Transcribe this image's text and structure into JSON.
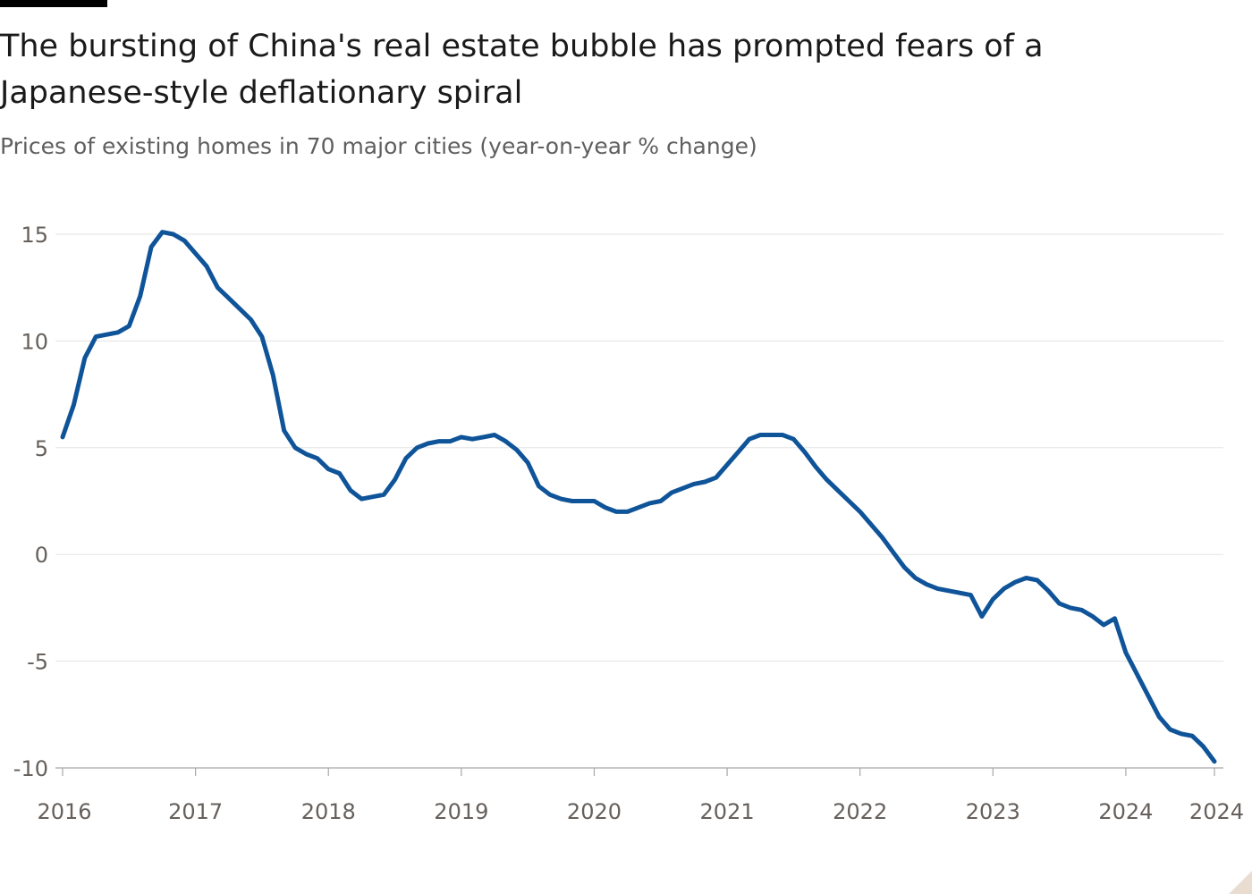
{
  "header": {
    "title": "The bursting of China's real estate bubble has prompted fears of a Japanese-style deflationary spiral",
    "subtitle": "Prices of existing homes in 70 major cities (year-on-year % change)"
  },
  "colors": {
    "series": "#0f5499",
    "grid": "#e3e3e3",
    "axis": "#a8a8a8",
    "tick_text": "#66605c"
  },
  "chart_data": {
    "type": "line",
    "title": "The bursting of China's real estate bubble has prompted fears of a Japanese-style deflationary spiral",
    "subtitle": "Prices of existing homes in 70 major cities (year-on-year % change)",
    "xlabel": "",
    "ylabel": "",
    "xlim": [
      "2016-01",
      "2024-09"
    ],
    "ylim": [
      -10,
      15
    ],
    "y_ticks": [
      15,
      10,
      5,
      0,
      -5,
      -10
    ],
    "y_tick_labels": [
      "15",
      "10",
      "5",
      "0",
      "-5",
      "-10"
    ],
    "x_ticks": [
      "2016-01",
      "2017-01",
      "2018-01",
      "2019-01",
      "2020-01",
      "2021-01",
      "2022-01",
      "2023-01",
      "2024-01",
      "2024-09"
    ],
    "x_tick_labels": [
      "2016",
      "2017",
      "2018",
      "2019",
      "2020",
      "2021",
      "2022",
      "2023",
      "2024",
      "2024"
    ],
    "grid": true,
    "legend": "none",
    "series": [
      {
        "x": [
          "2016-01",
          "2016-02",
          "2016-03",
          "2016-04",
          "2016-05",
          "2016-06",
          "2016-07",
          "2016-08",
          "2016-09",
          "2016-10",
          "2016-11",
          "2016-12",
          "2017-01",
          "2017-02",
          "2017-03",
          "2017-04",
          "2017-05",
          "2017-06",
          "2017-07",
          "2017-08",
          "2017-09",
          "2017-10",
          "2017-11",
          "2017-12",
          "2018-01",
          "2018-02",
          "2018-03",
          "2018-04",
          "2018-05",
          "2018-06",
          "2018-07",
          "2018-08",
          "2018-09",
          "2018-10",
          "2018-11",
          "2018-12",
          "2019-01",
          "2019-02",
          "2019-03",
          "2019-04",
          "2019-05",
          "2019-06",
          "2019-07",
          "2019-08",
          "2019-09",
          "2019-10",
          "2019-11",
          "2019-12",
          "2020-01",
          "2020-02",
          "2020-03",
          "2020-04",
          "2020-05",
          "2020-06",
          "2020-07",
          "2020-08",
          "2020-09",
          "2020-10",
          "2020-11",
          "2020-12",
          "2021-01",
          "2021-02",
          "2021-03",
          "2021-04",
          "2021-05",
          "2021-06",
          "2021-07",
          "2021-08",
          "2021-09",
          "2021-10",
          "2021-11",
          "2021-12",
          "2022-01",
          "2022-02",
          "2022-03",
          "2022-04",
          "2022-05",
          "2022-06",
          "2022-07",
          "2022-08",
          "2022-09",
          "2022-10",
          "2022-11",
          "2022-12",
          "2023-01",
          "2023-02",
          "2023-03",
          "2023-04",
          "2023-05",
          "2023-06",
          "2023-07",
          "2023-08",
          "2023-09",
          "2023-10",
          "2023-11",
          "2023-12",
          "2024-01",
          "2024-02",
          "2024-03",
          "2024-04",
          "2024-05",
          "2024-06",
          "2024-07",
          "2024-08",
          "2024-09"
        ],
        "values": [
          5.5,
          7.0,
          9.2,
          10.2,
          10.3,
          10.4,
          10.7,
          12.1,
          14.4,
          15.1,
          15.0,
          14.7,
          14.1,
          13.5,
          12.5,
          12.0,
          11.5,
          11.0,
          10.2,
          8.4,
          5.8,
          5.0,
          4.7,
          4.5,
          4.0,
          3.8,
          3.0,
          2.6,
          2.7,
          2.8,
          3.5,
          4.5,
          5.0,
          5.2,
          5.3,
          5.3,
          5.5,
          5.4,
          5.5,
          5.6,
          5.3,
          4.9,
          4.3,
          3.2,
          2.8,
          2.6,
          2.5,
          2.5,
          2.5,
          2.2,
          2.0,
          2.0,
          2.2,
          2.4,
          2.5,
          2.9,
          3.1,
          3.3,
          3.4,
          3.6,
          4.2,
          4.8,
          5.4,
          5.6,
          5.6,
          5.6,
          5.4,
          4.8,
          4.1,
          3.5,
          3.0,
          2.5,
          2.0,
          1.4,
          0.8,
          0.1,
          -0.6,
          -1.1,
          -1.4,
          -1.6,
          -1.7,
          -1.8,
          -1.9,
          -2.9,
          -2.1,
          -1.6,
          -1.3,
          -1.1,
          -1.2,
          -1.7,
          -2.3,
          -2.5,
          -2.6,
          -2.9,
          -3.3,
          -3.0,
          -4.6,
          -5.6,
          -6.6,
          -7.6,
          -8.2,
          -8.4,
          -8.5,
          -9.0,
          -9.7
        ]
      }
    ]
  }
}
